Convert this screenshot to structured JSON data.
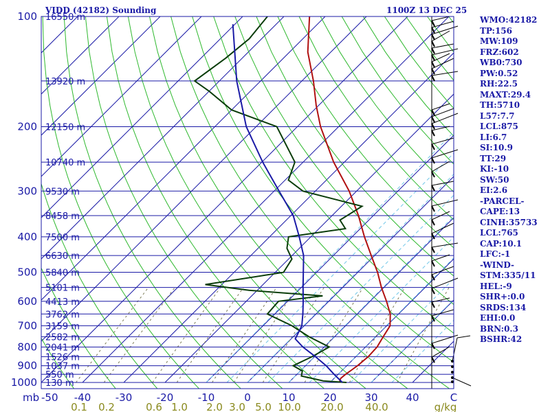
{
  "header": {
    "title": "VIDD (42182) Sounding",
    "time": "1100Z 13 DEC 25"
  },
  "chart_data": {
    "type": "line",
    "title": "VIDD (42182) Sounding",
    "chart_kind": "skew-T log-P",
    "pressure_levels": [
      100,
      200,
      300,
      400,
      500,
      600,
      700,
      800,
      900,
      1000
    ],
    "pressure_unit_label": "mb",
    "height_labels": [
      {
        "p": 100,
        "label": "16550 m"
      },
      {
        "p": 150,
        "label": "13920 m"
      },
      {
        "p": 200,
        "label": "12150 m"
      },
      {
        "p": 250,
        "label": "10740 m"
      },
      {
        "p": 300,
        "label": "9530 m"
      },
      {
        "p": 350,
        "label": "8458 m"
      },
      {
        "p": 400,
        "label": "7500 m"
      },
      {
        "p": 450,
        "label": "6630 m"
      },
      {
        "p": 500,
        "label": "5840 m"
      },
      {
        "p": 550,
        "label": "5101 m"
      },
      {
        "p": 600,
        "label": "4413 m"
      },
      {
        "p": 650,
        "label": "3762 m"
      },
      {
        "p": 700,
        "label": "3159 m"
      },
      {
        "p": 750,
        "label": "2582 m"
      },
      {
        "p": 800,
        "label": "2041 m"
      },
      {
        "p": 850,
        "label": "1526 m"
      },
      {
        "p": 900,
        "label": "1037 m"
      },
      {
        "p": 950,
        "label": "550 m"
      },
      {
        "p": 1000,
        "label": "130 m"
      }
    ],
    "temp_ticks": [
      "-50",
      "-40",
      "-30",
      "-20",
      "-10",
      "0",
      "10",
      "20",
      "30",
      "40",
      "C"
    ],
    "mixing_ratio_labels": [
      "0.1",
      "0.2",
      "0.6",
      "1.0",
      "2.0",
      "3.0",
      "5.0",
      "10.0",
      "20.0",
      "40.0",
      "g/kg"
    ],
    "series": [
      {
        "name": "Temperature",
        "color": "#b01010",
        "points": [
          [
            1000,
            23.0
          ],
          [
            990,
            22.0
          ],
          [
            975,
            21.6
          ],
          [
            950,
            21.8
          ],
          [
            925,
            22.2
          ],
          [
            900,
            22.6
          ],
          [
            850,
            23.0
          ],
          [
            800,
            22.8
          ],
          [
            750,
            21.8
          ],
          [
            700,
            20.8
          ],
          [
            650,
            18.0
          ],
          [
            600,
            14.0
          ],
          [
            550,
            9.4
          ],
          [
            500,
            4.8
          ],
          [
            450,
            -0.8
          ],
          [
            400,
            -7.0
          ],
          [
            350,
            -13.6
          ],
          [
            300,
            -21.8
          ],
          [
            250,
            -32.6
          ],
          [
            200,
            -44.4
          ],
          [
            175,
            -50.6
          ],
          [
            150,
            -57.2
          ],
          [
            125,
            -65.6
          ],
          [
            100,
            -73.8
          ]
        ]
      },
      {
        "name": "Dewpoint",
        "color": "#0a3d0a",
        "points": [
          [
            1000,
            24.0
          ],
          [
            990,
            18.0
          ],
          [
            960,
            11.5
          ],
          [
            930,
            10.5
          ],
          [
            900,
            7.0
          ],
          [
            850,
            9.4
          ],
          [
            800,
            11.2
          ],
          [
            750,
            3.8
          ],
          [
            700,
            -3.0
          ],
          [
            650,
            -11.8
          ],
          [
            600,
            -12.2
          ],
          [
            580,
            -2.8
          ],
          [
            560,
            -22.0
          ],
          [
            540,
            -34.0
          ],
          [
            500,
            -18.0
          ],
          [
            460,
            -19.2
          ],
          [
            430,
            -23.0
          ],
          [
            400,
            -25.4
          ],
          [
            380,
            -13.6
          ],
          [
            360,
            -17.0
          ],
          [
            330,
            -15.0
          ],
          [
            300,
            -33.0
          ],
          [
            280,
            -39.2
          ],
          [
            250,
            -42.0
          ],
          [
            200,
            -55.0
          ],
          [
            180,
            -70.0
          ],
          [
            160,
            -80.0
          ],
          [
            150,
            -86.0
          ],
          [
            130,
            -84.0
          ],
          [
            115,
            -83.0
          ],
          [
            100,
            -84.0
          ]
        ]
      },
      {
        "name": "Parcel",
        "color": "#1a1aa6",
        "points": [
          [
            1000,
            23.0
          ],
          [
            950,
            19.0
          ],
          [
            900,
            15.0
          ],
          [
            850,
            10.2
          ],
          [
            800,
            4.8
          ],
          [
            760,
            1.0
          ],
          [
            700,
            -0.6
          ],
          [
            650,
            -3.2
          ],
          [
            600,
            -6.2
          ],
          [
            550,
            -9.6
          ],
          [
            500,
            -13.2
          ],
          [
            450,
            -17.2
          ],
          [
            400,
            -22.8
          ],
          [
            350,
            -29.4
          ],
          [
            300,
            -38.8
          ],
          [
            250,
            -49.8
          ],
          [
            200,
            -62.4
          ],
          [
            150,
            -75.8
          ],
          [
            120,
            -85.0
          ],
          [
            105,
            -90.5
          ]
        ]
      }
    ]
  },
  "indices": [
    "WMO:42182",
    "TP:156",
    "MW:109",
    "FRZ:602",
    "WB0:730",
    "PW:0.52",
    "RH:22.5",
    "MAXT:29.4",
    "TH:5710",
    "L57:7.7",
    "LCL:875",
    "LI:6.7",
    "SI:10.9",
    "TT:29",
    "KI:-10",
    "SW:50",
    "EI:2.6",
    "-PARCEL-",
    "CAPE:13",
    "CINH:35733",
    "LCL:765",
    "CAP:10.1",
    "LFC:-1",
    "-WIND-",
    "STM:335/11",
    "HEL:-9",
    "SHR+:0.0",
    "SRDS:134",
    "EHI:0.0",
    "BRN:0.3",
    "BSHR:42"
  ],
  "colors": {
    "isobar": "#1a1aa6",
    "isotherm": "#1a1aa6",
    "dry_adiabat": "#2db82d",
    "moist_adiabat": "#6fc6e8",
    "mixing_ratio": "#7a7a55",
    "frame": "#1a1aa6",
    "label": "#1a1aa6",
    "mr_label": "#8a8a1e",
    "wind": "#000000"
  }
}
